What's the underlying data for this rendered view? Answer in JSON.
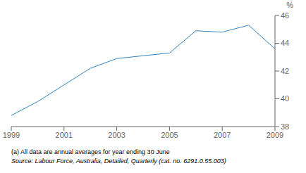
{
  "chart_data": {
    "type": "line",
    "ylabel": "%",
    "x": [
      1999,
      2000,
      2001,
      2002,
      2003,
      2004,
      2005,
      2006,
      2007,
      2008,
      2009
    ],
    "values": [
      38.8,
      39.8,
      41.0,
      42.2,
      42.9,
      43.1,
      43.3,
      44.9,
      44.8,
      45.3,
      43.6
    ],
    "xlim": [
      1999,
      2009
    ],
    "ylim": [
      38,
      46
    ],
    "xticks": [
      1999,
      2001,
      2003,
      2005,
      2007,
      2009
    ],
    "yticks": [
      38,
      40,
      42,
      44,
      46
    ],
    "grid": false,
    "annotations": [
      "(a) All data are annual averages for year ending 30 June",
      "Source: Labour Force, Australia, Detailed, Quarterly (cat. no. 6291.0.55.003)"
    ]
  }
}
